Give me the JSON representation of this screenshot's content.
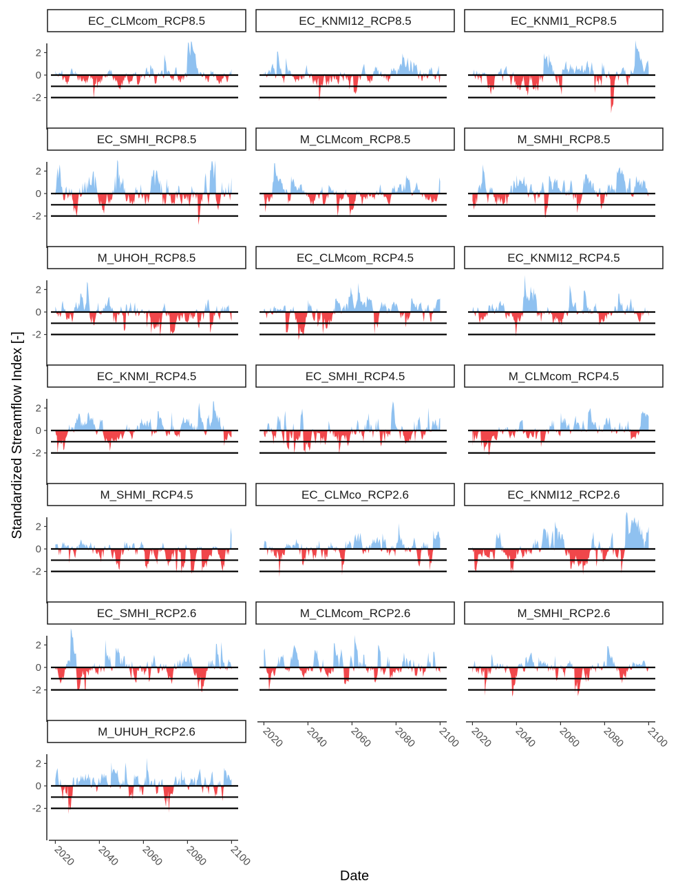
{
  "chart_data": {
    "type": "area",
    "xlabel": "Date",
    "ylabel": "Standardized Streamflow Index [-]",
    "xlim": [
      2018,
      2103
    ],
    "ylim": [
      -3.9,
      3.9
    ],
    "x_ticks": [
      "2020",
      "2040",
      "2060",
      "2080",
      "2100"
    ],
    "y_ticks": [
      "2",
      "0",
      "-2"
    ],
    "reference_lines": [
      0,
      -1,
      -2
    ],
    "grid": false,
    "colors": {
      "positive": "#8fc1f0",
      "negative": "#f0474b",
      "line": "#000000"
    },
    "panels": [
      {
        "title": "EC_CLMcom_RCP8.5",
        "max": 3.0,
        "min": -2.1,
        "seed": 11
      },
      {
        "title": "EC_KNMI12_RCP8.5",
        "max": 2.1,
        "min": -2.3,
        "seed": 12
      },
      {
        "title": "EC_KNMI1_RCP8.5",
        "max": 3.1,
        "min": -3.4,
        "seed": 13
      },
      {
        "title": "EC_SMHI_RCP8.5",
        "max": 3.0,
        "min": -2.8,
        "seed": 14
      },
      {
        "title": "M_CLMcom_RCP8.5",
        "max": 2.7,
        "min": -2.0,
        "seed": 15
      },
      {
        "title": "M_SMHI_RCP8.5",
        "max": 2.6,
        "min": -2.2,
        "seed": 16
      },
      {
        "title": "M_UHOH_RCP8.5",
        "max": 2.7,
        "min": -2.2,
        "seed": 17
      },
      {
        "title": "EC_CLMcom_RCP4.5",
        "max": 2.6,
        "min": -2.5,
        "seed": 18
      },
      {
        "title": "EC_KNMI12_RCP4.5",
        "max": 3.3,
        "min": -2.2,
        "seed": 19
      },
      {
        "title": "EC_KNMI_RCP4.5",
        "max": 2.6,
        "min": -2.0,
        "seed": 20
      },
      {
        "title": "EC_SMHI_RCP4.5",
        "max": 2.6,
        "min": -2.1,
        "seed": 21
      },
      {
        "title": "M_CLMcom_RCP4.5",
        "max": 2.0,
        "min": -2.2,
        "seed": 22
      },
      {
        "title": "M_SHMI_RCP4.5",
        "max": 1.9,
        "min": -2.2,
        "seed": 23
      },
      {
        "title": "EC_CLMco_RCP2.6",
        "max": 2.3,
        "min": -2.5,
        "seed": 24
      },
      {
        "title": "EC_KNMI12_RCP2.6",
        "max": 3.3,
        "min": -2.3,
        "seed": 25
      },
      {
        "title": "EC_SMHI_RCP2.6",
        "max": 3.5,
        "min": -2.2,
        "seed": 26
      },
      {
        "title": "M_CLMcom_RCP2.6",
        "max": 2.9,
        "min": -2.1,
        "seed": 27
      },
      {
        "title": "M_SMHI_RCP2.6",
        "max": 1.9,
        "min": -2.6,
        "seed": 28
      },
      {
        "title": "M_UHUH_RCP2.6",
        "max": 2.5,
        "min": -2.5,
        "seed": 29
      }
    ]
  }
}
